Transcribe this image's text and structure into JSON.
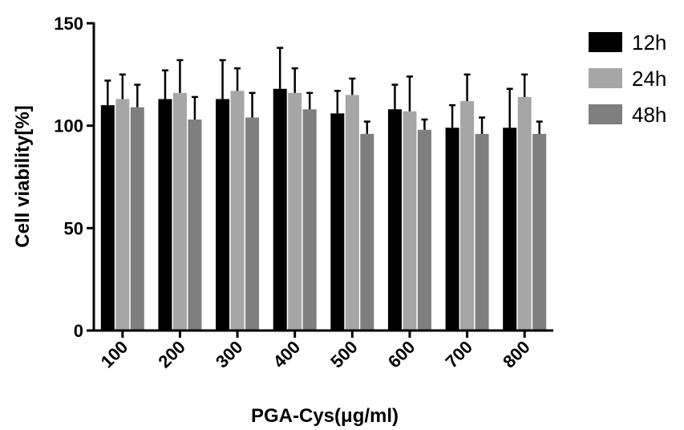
{
  "chart_data": {
    "type": "bar",
    "title": "",
    "xlabel": "PGA-Cys(μg/ml)",
    "ylabel": "Cell viability[%]",
    "ylim": [
      0,
      150
    ],
    "yticks": [
      0,
      50,
      100,
      150
    ],
    "categories": [
      "100",
      "200",
      "300",
      "400",
      "500",
      "600",
      "700",
      "800"
    ],
    "legend_position": "top-right",
    "grid": false,
    "error_bars": "upper only",
    "series": [
      {
        "name": "12h",
        "color": "#000000",
        "values": [
          110,
          113,
          113,
          118,
          106,
          108,
          99,
          99
        ],
        "errors": [
          12,
          14,
          19,
          20,
          11,
          12,
          11,
          19
        ]
      },
      {
        "name": "24h",
        "color": "#a6a6a6",
        "values": [
          113,
          116,
          117,
          116,
          115,
          107,
          112,
          114
        ],
        "errors": [
          12,
          16,
          11,
          12,
          8,
          17,
          13,
          11
        ]
      },
      {
        "name": "48h",
        "color": "#7f7f7f",
        "values": [
          109,
          103,
          104,
          108,
          96,
          98,
          96,
          96
        ],
        "errors": [
          11,
          11,
          12,
          8,
          6,
          5,
          8,
          6
        ]
      }
    ]
  }
}
